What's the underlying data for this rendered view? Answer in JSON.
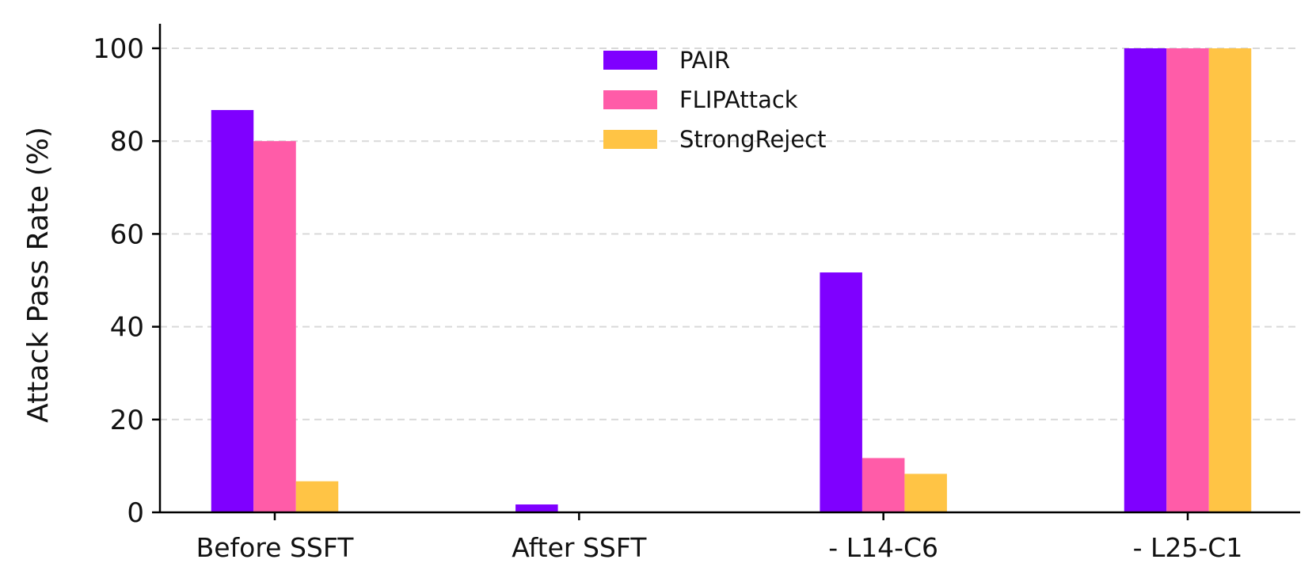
{
  "chart_data": {
    "type": "bar",
    "title": "",
    "xlabel": "",
    "ylabel": "Attack Pass Rate (%)",
    "ylim": [
      0,
      105
    ],
    "yticks": [
      0,
      20,
      40,
      60,
      80,
      100
    ],
    "grid": "horizontal dashed",
    "legend_position": "top-center",
    "categories": [
      "Before SSFT",
      "After SSFT",
      "- L14-C6",
      "- L25-C1"
    ],
    "series": [
      {
        "name": "PAIR",
        "color": "#7F00FF",
        "values": [
          86.7,
          1.7,
          51.7,
          100
        ]
      },
      {
        "name": "FLIPAttack",
        "color": "#FF5CA8",
        "values": [
          80,
          0,
          11.7,
          100
        ]
      },
      {
        "name": "StrongReject",
        "color": "#FFC445",
        "values": [
          6.7,
          0,
          8.3,
          100
        ]
      }
    ]
  }
}
